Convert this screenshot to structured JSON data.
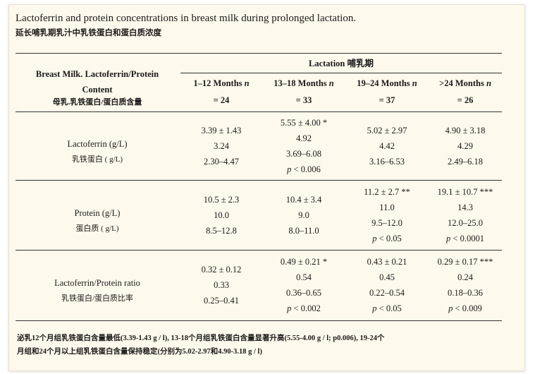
{
  "title": "Lactoferrin and protein concentrations in breast milk during prolonged lactation.",
  "subtitle": "延长哺乳期乳汁中乳铁蛋白和蛋白质浓度",
  "table": {
    "row_header": {
      "line1": "Breast Milk. Lactoferrin/Protein",
      "line2": "Content",
      "line3": "母乳.乳铁蛋白/蛋白质含量"
    },
    "group_header": "Lactation  哺乳期",
    "columns": [
      {
        "range": "1–12 Months",
        "n_label": "n",
        "n_value": "= 24"
      },
      {
        "range": "13–18 Months",
        "n_label": "n",
        "n_value": "= 33"
      },
      {
        "range": "19–24 Months",
        "n_label": "n",
        "n_value": "= 37"
      },
      {
        "range": ">24 Months",
        "n_label": "n",
        "n_value": "= 26"
      }
    ],
    "rows": [
      {
        "label_en": "Lactoferrin (g/L)",
        "label_cn": "乳铁蛋白 ( g/L)",
        "cells": [
          {
            "mean_sd": "3.39 ± 1.43",
            "median": "3.24",
            "range": "2.30–4.47",
            "p": ""
          },
          {
            "mean_sd": "5.55 ± 4.00 *",
            "median": "4.92",
            "range": "3.69–6.08",
            "p": "< 0.006"
          },
          {
            "mean_sd": "5.02 ± 2.97",
            "median": "4.42",
            "range": "3.16–6.53",
            "p": ""
          },
          {
            "mean_sd": "4.90 ± 3.18",
            "median": "4.29",
            "range": "2.49–6.18",
            "p": ""
          }
        ]
      },
      {
        "label_en": "Protein (g/L)",
        "label_cn": "蛋白质 ( g/L)",
        "cells": [
          {
            "mean_sd": "10.5 ± 2.3",
            "median": "10.0",
            "range": "8.5–12.8",
            "p": ""
          },
          {
            "mean_sd": "10.4 ± 3.4",
            "median": "9.0",
            "range": "8.0–11.0",
            "p": ""
          },
          {
            "mean_sd": "11.2 ± 2.7 **",
            "median": "11.0",
            "range": "9.5–12.0",
            "p": "< 0.05"
          },
          {
            "mean_sd": "19.1 ± 10.7 ***",
            "median": "14.3",
            "range": "12.0–25.0",
            "p": "< 0.0001"
          }
        ]
      },
      {
        "label_en": "Lactoferrin/Protein ratio",
        "label_cn": "乳铁蛋白/蛋白质比率",
        "cells": [
          {
            "mean_sd": "0.32 ± 0.12",
            "median": "0.33",
            "range": "0.25–0.41",
            "p": ""
          },
          {
            "mean_sd": "0.49 ± 0.21 *",
            "median": "0.54",
            "range": "0.36–0.65",
            "p": "< 0.002"
          },
          {
            "mean_sd": "0.43 ± 0.21",
            "median": "0.45",
            "range": "0.22–0.54",
            "p": "< 0.05"
          },
          {
            "mean_sd": "0.29 ± 0.17 ***",
            "median": "0.24",
            "range": "0.18–0.36",
            "p": "< 0.009"
          }
        ]
      }
    ],
    "p_symbol": "p"
  },
  "footer": {
    "line1": "泌乳12个月组乳铁蛋白含量最低(3.39-1.43 g / l), 13-18个月组乳铁蛋白含量显著升高(5.55-4.00 g / l; p0.006), 19-24个",
    "line2": "月组和24个月以上组乳铁蛋白含量保持稳定(分别为5.02-2.97和4.90-3.18 g / l)"
  }
}
